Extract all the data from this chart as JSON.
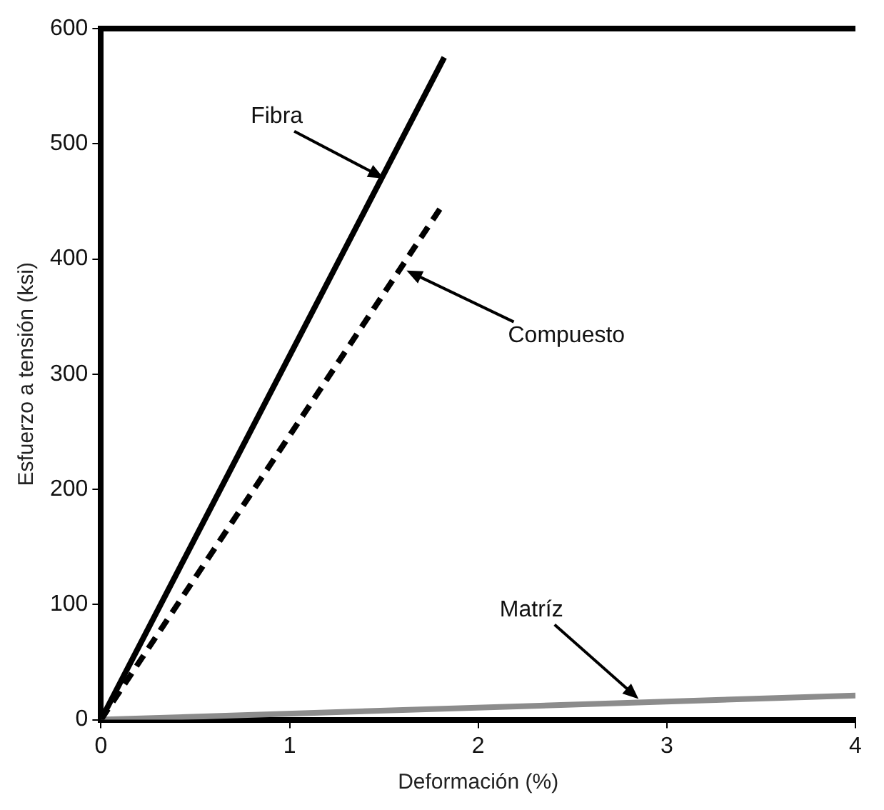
{
  "chart_data": {
    "type": "line",
    "xlabel": "Deformación (%)",
    "ylabel": "Esfuerzo a tensión (ksi)",
    "xlim": [
      0,
      4
    ],
    "xticks": [
      0,
      1,
      2,
      3,
      4
    ],
    "ylim": [
      0,
      600
    ],
    "yticks": [
      0,
      100,
      200,
      300,
      400,
      500,
      600
    ],
    "grid": false,
    "legend": false,
    "marker": "none",
    "series": [
      {
        "color": "#000000",
        "x": [
          0,
          1.82
        ],
        "values": [
          0,
          575
        ],
        "line_style": "solid"
      },
      {
        "color": "#000000",
        "x": [
          0,
          1.82
        ],
        "values": [
          0,
          449
        ],
        "line_style": "dashed"
      },
      {
        "color": "#8c8c8c",
        "x": [
          0,
          4
        ],
        "values": [
          0,
          21
        ],
        "line_style": "solid"
      }
    ],
    "annotations": [
      {
        "text": "Fibra",
        "x": 1.5,
        "y": 470
      },
      {
        "text": "Compuesto",
        "x": 1.62,
        "y": 390
      },
      {
        "text": "Matríz",
        "x": 2.85,
        "y": 18
      }
    ]
  }
}
